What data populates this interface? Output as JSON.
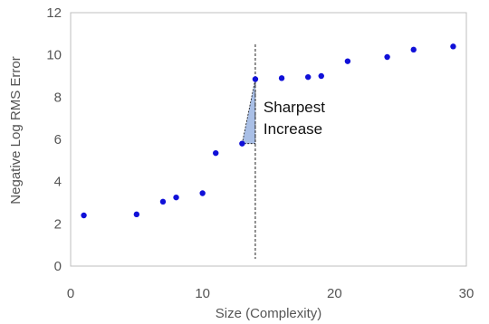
{
  "chart_data": {
    "type": "scatter",
    "title": "",
    "xlabel": "Size (Complexity)",
    "ylabel": "Negative Log RMS Error",
    "xlim": [
      0,
      30
    ],
    "ylim": [
      0,
      12
    ],
    "xticks": [
      0,
      10,
      20,
      30
    ],
    "yticks": [
      0,
      2,
      4,
      6,
      8,
      10,
      12
    ],
    "grid": false,
    "legend": "none",
    "series": [
      {
        "color": "#1010d8",
        "points": [
          {
            "x": 1,
            "y": 2.4
          },
          {
            "x": 5,
            "y": 2.45
          },
          {
            "x": 7,
            "y": 3.05
          },
          {
            "x": 8,
            "y": 3.25
          },
          {
            "x": 10,
            "y": 3.45
          },
          {
            "x": 11,
            "y": 5.35
          },
          {
            "x": 13,
            "y": 5.8
          },
          {
            "x": 14,
            "y": 8.85
          },
          {
            "x": 16,
            "y": 8.9
          },
          {
            "x": 18,
            "y": 8.95
          },
          {
            "x": 19,
            "y": 9.0
          },
          {
            "x": 21,
            "y": 9.7
          },
          {
            "x": 24,
            "y": 9.9
          },
          {
            "x": 26,
            "y": 10.25
          },
          {
            "x": 29,
            "y": 10.4
          }
        ]
      }
    ],
    "annotation": {
      "text_lines": [
        "Sharpest",
        "Increase"
      ],
      "vline_x": 14,
      "triangle": {
        "x1": 13,
        "y1": 5.8,
        "x2": 14,
        "y2": 8.85
      },
      "fill_color": "#a9bfe6"
    }
  }
}
